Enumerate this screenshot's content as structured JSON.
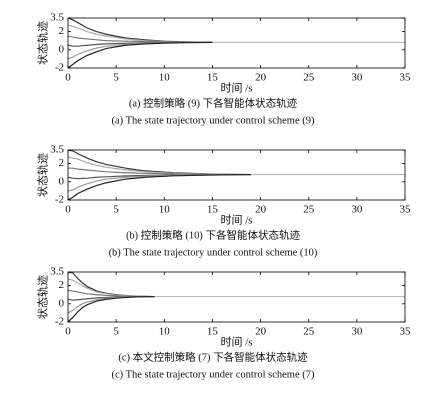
{
  "chart_data": [
    {
      "type": "line",
      "ylabel": "状态轨迹",
      "xlabel": "时间 /s",
      "caption": "(a) 控制策略 (9) 下各智能体状态轨迹",
      "caption_en": "(a) The state trajectory under control scheme (9)",
      "x": [
        0,
        0.5,
        1,
        2,
        3,
        4,
        6,
        8,
        10,
        12,
        15,
        35
      ],
      "xlim": [
        0,
        35
      ],
      "xticks": [
        0,
        5,
        10,
        15,
        20,
        25,
        30,
        35
      ],
      "ylim": [
        -2,
        3.5
      ],
      "yticks": [
        -2,
        0,
        2,
        3.5
      ],
      "series": [
        {
          "color": "#333333",
          "values": [
            3.5,
            3.3,
            3.0,
            2.4,
            2.0,
            1.7,
            1.3,
            1.1,
            0.95,
            0.88,
            0.82,
            null
          ]
        },
        {
          "color": "#aaaaaa",
          "values": [
            2.7,
            2.6,
            2.4,
            2.0,
            1.7,
            1.5,
            1.2,
            1.0,
            0.9,
            0.85,
            0.82,
            null
          ]
        },
        {
          "color": "#777777",
          "values": [
            1.5,
            1.4,
            1.3,
            1.2,
            1.1,
            1.0,
            0.95,
            0.9,
            0.87,
            0.84,
            0.82,
            null
          ]
        },
        {
          "color": "#555555",
          "values": [
            0.5,
            0.4,
            0.4,
            0.5,
            0.6,
            0.65,
            0.72,
            0.76,
            0.79,
            0.81,
            0.82,
            null
          ]
        },
        {
          "color": "#999999",
          "values": [
            -1.0,
            -0.8,
            -0.5,
            -0.1,
            0.2,
            0.4,
            0.6,
            0.7,
            0.76,
            0.8,
            0.82,
            null
          ]
        },
        {
          "color": "#222222",
          "values": [
            -2.0,
            -1.6,
            -1.2,
            -0.6,
            -0.2,
            0.15,
            0.5,
            0.65,
            0.74,
            0.79,
            0.82,
            null
          ]
        },
        {
          "color": "#bbbbbb",
          "values": [
            null,
            null,
            null,
            null,
            null,
            null,
            null,
            null,
            null,
            null,
            0.82,
            0.82
          ]
        }
      ]
    },
    {
      "type": "line",
      "ylabel": "状态轨迹",
      "xlabel": "时间 /s",
      "caption": "(b) 控制策略 (10) 下各智能体状态轨迹",
      "caption_en": "(b) The state trajectory under control scheme (10)",
      "x": [
        0,
        0.5,
        1,
        2,
        3,
        4,
        6,
        8,
        11,
        15,
        19,
        35
      ],
      "xlim": [
        0,
        35
      ],
      "xticks": [
        0,
        5,
        10,
        15,
        20,
        25,
        30,
        35
      ],
      "ylim": [
        -2,
        3.5
      ],
      "yticks": [
        -2,
        0,
        2,
        3.5
      ],
      "series": [
        {
          "color": "#333333",
          "values": [
            3.5,
            3.4,
            3.1,
            2.6,
            2.2,
            1.9,
            1.5,
            1.2,
            1.0,
            0.85,
            0.8,
            null
          ]
        },
        {
          "color": "#aaaaaa",
          "values": [
            2.7,
            2.6,
            2.5,
            2.1,
            1.8,
            1.6,
            1.3,
            1.1,
            0.95,
            0.84,
            0.8,
            null
          ]
        },
        {
          "color": "#777777",
          "values": [
            1.5,
            1.5,
            1.4,
            1.3,
            1.2,
            1.1,
            1.0,
            0.92,
            0.87,
            0.82,
            0.8,
            null
          ]
        },
        {
          "color": "#555555",
          "values": [
            0.5,
            0.4,
            0.35,
            0.4,
            0.5,
            0.55,
            0.65,
            0.7,
            0.75,
            0.78,
            0.8,
            null
          ]
        },
        {
          "color": "#999999",
          "values": [
            -1.0,
            -0.9,
            -0.6,
            -0.2,
            0.1,
            0.3,
            0.5,
            0.62,
            0.72,
            0.77,
            0.8,
            null
          ]
        },
        {
          "color": "#222222",
          "values": [
            -2.0,
            -1.7,
            -1.3,
            -0.8,
            -0.4,
            -0.1,
            0.3,
            0.5,
            0.66,
            0.75,
            0.8,
            null
          ]
        },
        {
          "color": "#bbbbbb",
          "values": [
            null,
            null,
            null,
            null,
            null,
            null,
            null,
            null,
            null,
            null,
            0.8,
            0.8
          ]
        }
      ]
    },
    {
      "type": "line",
      "ylabel": "状态轨迹",
      "xlabel": "时间 /s",
      "caption": "(c) 本文控制策略 (7) 下各智能体状态轨迹",
      "caption_en": "(c) The state trajectory under control scheme (7)",
      "x": [
        0,
        0.5,
        1,
        1.5,
        2,
        3,
        4,
        5,
        6,
        7,
        9,
        35
      ],
      "xlim": [
        0,
        35
      ],
      "xticks": [
        0,
        5,
        10,
        15,
        20,
        25,
        30,
        35
      ],
      "ylim": [
        -2,
        3.5
      ],
      "yticks": [
        -2,
        0,
        2,
        3.5
      ],
      "series": [
        {
          "color": "#333333",
          "values": [
            3.5,
            3.4,
            2.8,
            2.3,
            1.9,
            1.4,
            1.15,
            1.0,
            0.9,
            0.85,
            0.8,
            null
          ]
        },
        {
          "color": "#aaaaaa",
          "values": [
            2.7,
            2.6,
            2.3,
            2.0,
            1.7,
            1.3,
            1.1,
            0.95,
            0.88,
            0.84,
            0.8,
            null
          ]
        },
        {
          "color": "#777777",
          "values": [
            1.5,
            1.4,
            1.3,
            1.2,
            1.1,
            1.0,
            0.92,
            0.87,
            0.84,
            0.82,
            0.8,
            null
          ]
        },
        {
          "color": "#555555",
          "values": [
            0.5,
            0.4,
            0.45,
            0.5,
            0.55,
            0.65,
            0.7,
            0.74,
            0.77,
            0.79,
            0.8,
            null
          ]
        },
        {
          "color": "#999999",
          "values": [
            -1.0,
            -0.7,
            -0.3,
            0.0,
            0.2,
            0.45,
            0.6,
            0.68,
            0.74,
            0.77,
            0.8,
            null
          ]
        },
        {
          "color": "#222222",
          "values": [
            -2.0,
            -1.5,
            -0.9,
            -0.4,
            -0.1,
            0.3,
            0.5,
            0.62,
            0.7,
            0.76,
            0.8,
            null
          ]
        },
        {
          "color": "#bbbbbb",
          "values": [
            null,
            null,
            null,
            null,
            null,
            null,
            null,
            null,
            null,
            null,
            0.8,
            0.8
          ]
        }
      ]
    }
  ]
}
